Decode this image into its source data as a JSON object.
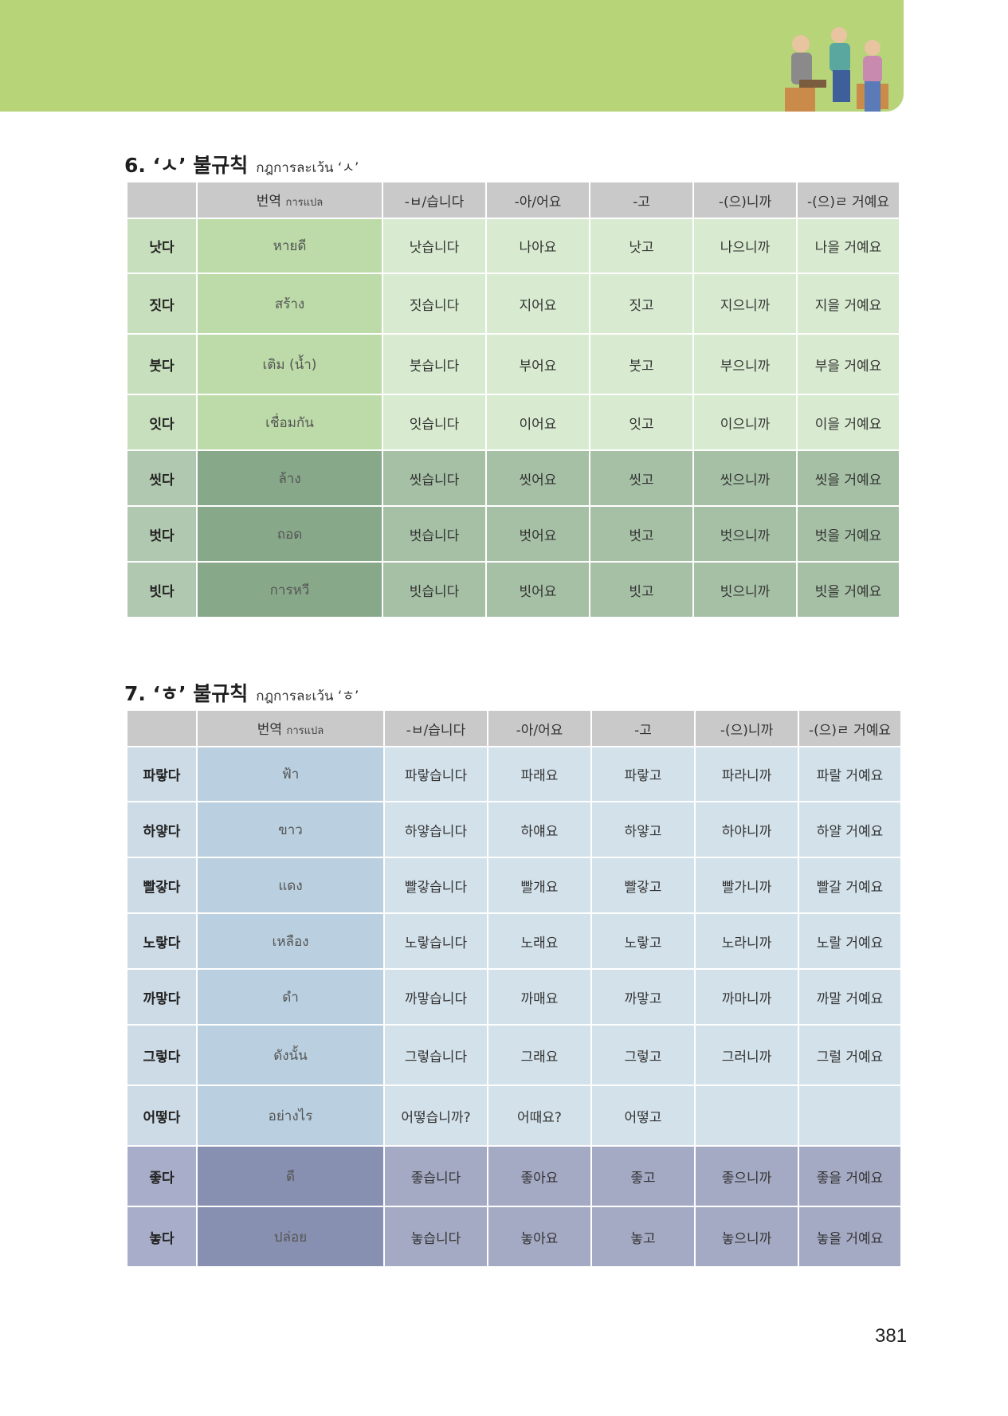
{
  "section6": {
    "title_ko": "6. ‘ㅅ’ 불규칙",
    "title_th": "กฎการละเว้น ‘ㅅ’",
    "header": {
      "translation_ko": "번역",
      "translation_th": "การแปล",
      "cols": [
        "-ㅂ/습니다",
        "-아/어요",
        "-고",
        "-(으)니까",
        "-(으)ㄹ 거예요"
      ]
    },
    "rows": [
      {
        "word": "낫다",
        "trans": "หายดี",
        "forms": [
          "낫습니다",
          "나아요",
          "낫고",
          "나으니까",
          "나을 거예요"
        ]
      },
      {
        "word": "짓다",
        "trans": "สร้าง",
        "forms": [
          "짓습니다",
          "지어요",
          "짓고",
          "지으니까",
          "지을 거예요"
        ]
      },
      {
        "word": "붓다",
        "trans": "เติม (น้ำ)",
        "forms": [
          "붓습니다",
          "부어요",
          "붓고",
          "부으니까",
          "부을 거예요"
        ]
      },
      {
        "word": "잇다",
        "trans": "เชื่อมกัน",
        "forms": [
          "잇습니다",
          "이어요",
          "잇고",
          "이으니까",
          "이을 거예요"
        ]
      },
      {
        "word": "씻다",
        "trans": "ล้าง",
        "forms": [
          "씻습니다",
          "씻어요",
          "씻고",
          "씻으니까",
          "씻을 거예요"
        ]
      },
      {
        "word": "벗다",
        "trans": "ถอด",
        "forms": [
          "벗습니다",
          "벗어요",
          "벗고",
          "벗으니까",
          "벗을 거예요"
        ]
      },
      {
        "word": "빗다",
        "trans": "การหวี",
        "forms": [
          "빗습니다",
          "빗어요",
          "빗고",
          "빗으니까",
          "빗을 거예요"
        ]
      }
    ]
  },
  "section7": {
    "title_ko": "7. ‘ㅎ’ 불규칙",
    "title_th": "กฎการละเว้น ‘ㅎ’",
    "header": {
      "translation_ko": "번역",
      "translation_th": "การแปล",
      "cols": [
        "-ㅂ/습니다",
        "-아/어요",
        "-고",
        "-(으)니까",
        "-(으)ㄹ 거예요"
      ]
    },
    "rows": [
      {
        "word": "파랗다",
        "trans": "ฟ้า",
        "forms": [
          "파랗습니다",
          "파래요",
          "파랗고",
          "파라니까",
          "파랄 거예요"
        ]
      },
      {
        "word": "하얗다",
        "trans": "ขาว",
        "forms": [
          "하얗습니다",
          "하얘요",
          "하얗고",
          "하야니까",
          "하얄 거예요"
        ]
      },
      {
        "word": "빨갛다",
        "trans": "แดง",
        "forms": [
          "빨갛습니다",
          "빨개요",
          "빨갛고",
          "빨가니까",
          "빨갈 거예요"
        ]
      },
      {
        "word": "노랗다",
        "trans": "เหลือง",
        "forms": [
          "노랗습니다",
          "노래요",
          "노랗고",
          "노라니까",
          "노랄 거예요"
        ]
      },
      {
        "word": "까맣다",
        "trans": "ดำ",
        "forms": [
          "까맣습니다",
          "까매요",
          "까맣고",
          "까마니까",
          "까말 거예요"
        ]
      },
      {
        "word": "그렇다",
        "trans": "ดังนั้น",
        "forms": [
          "그렇습니다",
          "그래요",
          "그렇고",
          "그러니까",
          "그럴 거예요"
        ]
      },
      {
        "word": "어떻다",
        "trans": "อย่างไร",
        "forms": [
          "어떻습니까?",
          "어때요?",
          "어떻고",
          "",
          ""
        ]
      },
      {
        "word": "좋다",
        "trans": "ดี",
        "forms": [
          "좋습니다",
          "좋아요",
          "좋고",
          "좋으니까",
          "좋을 거예요"
        ]
      },
      {
        "word": "놓다",
        "trans": "ปล่อย",
        "forms": [
          "놓습니다",
          "놓아요",
          "놓고",
          "놓으니까",
          "놓을 거예요"
        ]
      }
    ]
  },
  "page_number": "381"
}
